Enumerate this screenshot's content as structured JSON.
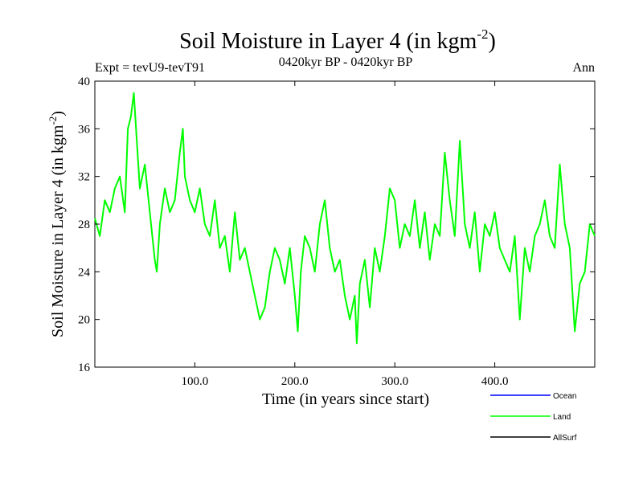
{
  "chart_data": {
    "type": "line",
    "title": "Soil Moisture in Layer 4 (in kgm",
    "title_sup": "-2",
    "title_close": ")",
    "subtitle": "0420kyr BP - 0420kyr BP",
    "expt_label": "Expt = tevU9-tevT91",
    "period_label": "Ann",
    "xlabel": "Time (in years since start)",
    "ylabel": "Soil Moisture in Layer 4 (in kgm",
    "ylabel_sup": "-2",
    "ylabel_close": ")",
    "xlim": [
      0,
      500
    ],
    "ylim": [
      16,
      40
    ],
    "xticks": [
      100,
      200,
      300,
      400
    ],
    "xtick_labels": [
      "100.0",
      "200.0",
      "300.0",
      "400.0"
    ],
    "yticks": [
      16,
      20,
      24,
      28,
      32,
      36,
      40
    ],
    "ytick_labels": [
      "16",
      "20",
      "24",
      "28",
      "32",
      "36",
      "40"
    ],
    "series": [
      {
        "name": "Land",
        "color": "#00ff00",
        "x": [
          0,
          5,
          10,
          15,
          20,
          25,
          30,
          33,
          36,
          39,
          42,
          45,
          50,
          55,
          60,
          62,
          65,
          70,
          75,
          80,
          85,
          88,
          90,
          95,
          100,
          105,
          110,
          115,
          120,
          125,
          130,
          135,
          140,
          145,
          150,
          155,
          160,
          165,
          170,
          175,
          180,
          185,
          190,
          195,
          200,
          203,
          206,
          210,
          215,
          220,
          225,
          230,
          235,
          240,
          245,
          250,
          255,
          260,
          262,
          265,
          270,
          275,
          280,
          285,
          290,
          295,
          300,
          305,
          310,
          315,
          320,
          325,
          330,
          335,
          340,
          345,
          350,
          355,
          360,
          365,
          370,
          375,
          380,
          385,
          390,
          395,
          400,
          405,
          410,
          415,
          420,
          425,
          430,
          435,
          440,
          445,
          450,
          455,
          460,
          465,
          470,
          475,
          480,
          485,
          490,
          495,
          500
        ],
        "values": [
          28.5,
          27,
          30,
          29,
          31,
          32,
          29,
          36,
          37,
          39,
          35,
          31,
          33,
          29,
          25,
          24,
          28,
          31,
          29,
          30,
          34,
          36,
          32,
          30,
          29,
          31,
          28,
          27,
          30,
          26,
          27,
          24,
          29,
          25,
          26,
          24,
          22,
          20,
          21,
          24,
          26,
          25,
          23,
          26,
          22,
          19,
          24,
          27,
          26,
          24,
          28,
          30,
          26,
          24,
          25,
          22,
          20,
          22,
          18,
          23,
          25,
          21,
          26,
          24,
          27,
          31,
          30,
          26,
          28,
          27,
          30,
          26,
          29,
          25,
          28,
          27,
          34,
          30,
          27,
          35,
          28,
          26,
          29,
          24,
          28,
          27,
          29,
          26,
          25,
          24,
          27,
          20,
          26,
          24,
          27,
          28,
          30,
          27,
          26,
          33,
          28,
          26,
          19,
          23,
          24,
          28,
          27
        ]
      }
    ],
    "legend": [
      {
        "label": "Ocean",
        "color": "#0000ff"
      },
      {
        "label": "Land",
        "color": "#00ff00"
      },
      {
        "label": "AllSurf",
        "color": "#000000"
      }
    ]
  }
}
